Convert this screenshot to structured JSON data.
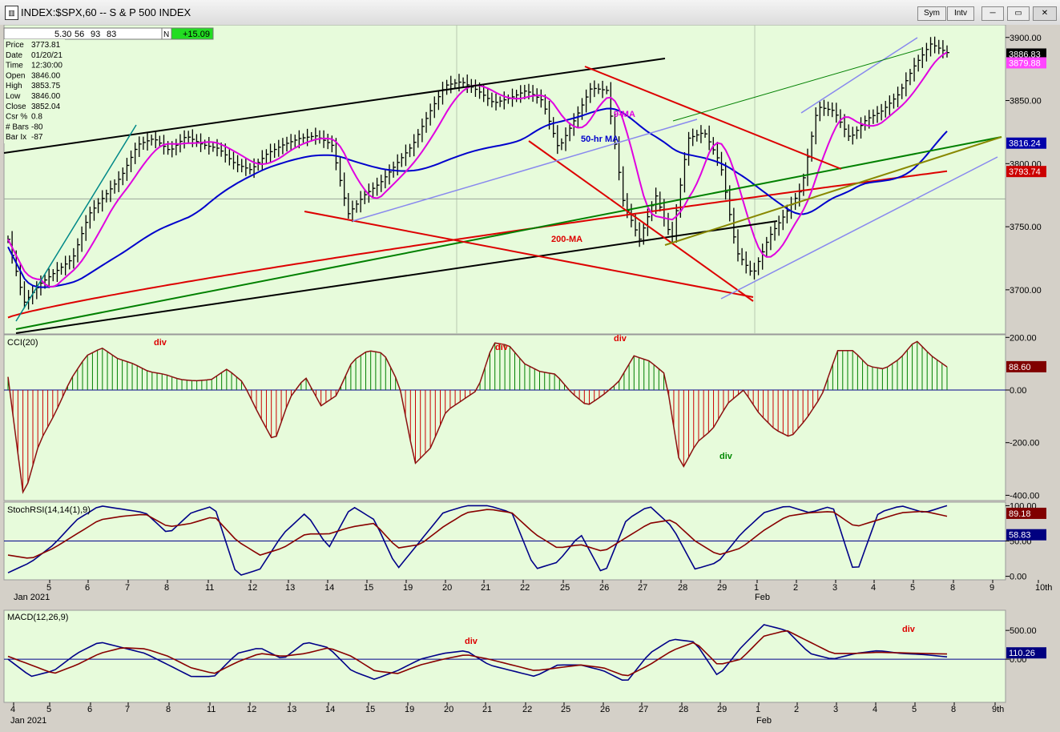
{
  "window": {
    "title": "INDEX:$SPX,60 -- S & P 500 INDEX",
    "sym_label": "Sym",
    "intv_label": "Intv",
    "minimize_glyph": "─",
    "restore_glyph": "▭",
    "close_glyph": "✕"
  },
  "toolbar": {
    "values": [
      "5.30",
      "56",
      "93",
      "83"
    ],
    "n_label": "N",
    "change": "+15.09"
  },
  "info_box": [
    {
      "label": "Price",
      "value": "3773.81"
    },
    {
      "label": "Date",
      "value": "01/20/21"
    },
    {
      "label": "Time",
      "value": "12:30:00"
    },
    {
      "label": "Open",
      "value": "3846.00"
    },
    {
      "label": "High",
      "value": "3853.75"
    },
    {
      "label": "Low",
      "value": "3846.00"
    },
    {
      "label": "Close",
      "value": "3852.04"
    },
    {
      "label": "Csr %",
      "value": "0.8"
    },
    {
      "label": "# Bars",
      "value": "-80"
    },
    {
      "label": "Bar Ix",
      "value": "-87"
    }
  ],
  "chart_data": [
    {
      "type": "ohlc",
      "panel": "price",
      "title": "",
      "ylim": [
        3665,
        3910
      ],
      "y_ticks": [
        "3900.00",
        "3850.00",
        "3800.00",
        "3750.00",
        "3700.00"
      ],
      "y_tick_values": [
        3900,
        3850,
        3800,
        3750,
        3700
      ],
      "close_path": [
        3740,
        3690,
        3705,
        3715,
        3725,
        3760,
        3775,
        3790,
        3815,
        3820,
        3810,
        3822,
        3815,
        3812,
        3800,
        3795,
        3808,
        3815,
        3820,
        3822,
        3815,
        3760,
        3775,
        3785,
        3800,
        3815,
        3840,
        3862,
        3865,
        3858,
        3848,
        3852,
        3858,
        3850,
        3812,
        3835,
        3860,
        3858,
        3770,
        3740,
        3775,
        3740,
        3820,
        3825,
        3800,
        3730,
        3712,
        3742,
        3760,
        3780,
        3845,
        3842,
        3820,
        3835,
        3842,
        3855,
        3878,
        3895,
        3888
      ],
      "highlight_labels": [
        {
          "value": "3886.83",
          "bg": "#000000",
          "fg": "#ffffff",
          "at": 3886.83
        },
        {
          "value": "3879.88",
          "bg": "#ff44ff",
          "fg": "#ffffff",
          "at": 3879.88
        },
        {
          "value": "3816.24",
          "bg": "#0000aa",
          "fg": "#ffffff",
          "at": 3816.24
        },
        {
          "value": "3793.74",
          "bg": "#cc0000",
          "fg": "#ffffff",
          "at": 3793.74
        }
      ],
      "annotations": [
        {
          "text": "9-MA",
          "color": "#e000e0"
        },
        {
          "text": "50-hr MA",
          "color": "#0000cc"
        },
        {
          "text": "200-MA",
          "color": "#dd0000"
        }
      ],
      "series": [
        {
          "name": "9-MA",
          "color": "#e000e0"
        },
        {
          "name": "50-hr MA",
          "color": "#0000cc"
        },
        {
          "name": "200-MA",
          "color": "#dd0000"
        }
      ]
    },
    {
      "type": "bar",
      "panel": "cci",
      "title": "CCI(20)",
      "ylim": [
        -420,
        210
      ],
      "y_ticks": [
        "200.00",
        "0.00",
        "-200.00",
        "-400.00"
      ],
      "y_tick_values": [
        200,
        0,
        -200,
        -400
      ],
      "values": [
        50,
        -410,
        -200,
        -90,
        40,
        130,
        160,
        120,
        100,
        70,
        60,
        40,
        35,
        40,
        80,
        30,
        -90,
        -200,
        -30,
        50,
        -60,
        -20,
        110,
        150,
        140,
        20,
        -280,
        -220,
        -80,
        -40,
        0,
        180,
        170,
        100,
        70,
        60,
        -10,
        -60,
        -20,
        30,
        130,
        110,
        60,
        -310,
        -200,
        -150,
        -50,
        0,
        -90,
        -150,
        -180,
        -110,
        -20,
        150,
        150,
        90,
        80,
        120,
        190,
        130,
        88
      ],
      "current_label": {
        "value": "88.60",
        "bg": "#800000",
        "fg": "#ffffff"
      },
      "annotations": [
        {
          "text": "div",
          "color": "#dd0000"
        },
        {
          "text": "div",
          "color": "#dd0000"
        },
        {
          "text": "div",
          "color": "#dd0000"
        },
        {
          "text": "div",
          "color": "#008800"
        }
      ]
    },
    {
      "type": "line",
      "panel": "stochrsi",
      "title": "StochRSI(14,14(1),9)",
      "ylim": [
        -5,
        105
      ],
      "y_ticks": [
        "100.00",
        "50.00",
        "0.00"
      ],
      "y_tick_values": [
        100,
        50,
        0
      ],
      "series": [
        {
          "name": "",
          "color": "#000088",
          "values": [
            5,
            20,
            45,
            80,
            100,
            95,
            90,
            60,
            90,
            100,
            0,
            10,
            60,
            90,
            40,
            100,
            80,
            10,
            50,
            90,
            100,
            100,
            90,
            10,
            20,
            60,
            0,
            80,
            100,
            70,
            10,
            20,
            60,
            90,
            100,
            90,
            100,
            0,
            90,
            100,
            90,
            100
          ]
        },
        {
          "name": "",
          "color": "#880000",
          "values": [
            30,
            25,
            40,
            60,
            80,
            85,
            88,
            70,
            75,
            85,
            50,
            30,
            40,
            60,
            60,
            70,
            75,
            40,
            45,
            70,
            90,
            95,
            90,
            60,
            40,
            45,
            35,
            55,
            75,
            80,
            50,
            30,
            40,
            65,
            85,
            90,
            92,
            70,
            80,
            90,
            92,
            85
          ]
        }
      ],
      "current_labels": [
        {
          "value": "89.18",
          "bg": "#800000",
          "fg": "#ffffff",
          "at": 89.18
        },
        {
          "value": "58.83",
          "bg": "#000080",
          "fg": "#ffffff",
          "at": 58.83
        }
      ],
      "x_ticks": [
        "5",
        "6",
        "7",
        "8",
        "11",
        "12",
        "13",
        "14",
        "15",
        "19",
        "20",
        "21",
        "22",
        "25",
        "26",
        "27",
        "28",
        "29",
        "1",
        "2",
        "3",
        "4",
        "5",
        "8",
        "9",
        "10th"
      ],
      "x_month_labels": [
        "Jan 2021",
        "Feb"
      ]
    },
    {
      "type": "line",
      "panel": "macd",
      "title": "MACD(12,26,9)",
      "ylim": [
        -750,
        850
      ],
      "y_ticks": [
        "500.00",
        "0.00"
      ],
      "y_tick_values": [
        500,
        0
      ],
      "series": [
        {
          "name": "",
          "color": "#000088",
          "values": [
            0,
            -300,
            -200,
            100,
            300,
            200,
            100,
            -100,
            -300,
            -300,
            100,
            200,
            0,
            300,
            200,
            -200,
            -350,
            -200,
            0,
            100,
            150,
            -100,
            -200,
            -300,
            -100,
            -100,
            -200,
            -400,
            100,
            350,
            300,
            -300,
            200,
            600,
            500,
            100,
            0,
            100,
            150,
            100,
            80,
            40
          ]
        },
        {
          "name": "",
          "color": "#880000",
          "values": [
            50,
            -100,
            -250,
            -100,
            100,
            200,
            180,
            50,
            -150,
            -250,
            -50,
            100,
            50,
            100,
            200,
            50,
            -200,
            -250,
            -100,
            0,
            80,
            0,
            -100,
            -200,
            -150,
            -100,
            -150,
            -300,
            -100,
            150,
            300,
            -100,
            0,
            400,
            500,
            300,
            100,
            100,
            120,
            110,
            100,
            90
          ]
        }
      ],
      "current_label": {
        "value": "110.26",
        "bg": "#000080",
        "fg": "#ffffff"
      },
      "annotations": [
        {
          "text": "div",
          "color": "#dd0000"
        },
        {
          "text": "div",
          "color": "#dd0000"
        }
      ],
      "x_ticks": [
        "4",
        "5",
        "6",
        "7",
        "8",
        "11",
        "12",
        "13",
        "14",
        "15",
        "19",
        "20",
        "21",
        "22",
        "25",
        "26",
        "27",
        "28",
        "29",
        "1",
        "2",
        "3",
        "4",
        "5",
        "8",
        "9th"
      ],
      "x_month_labels": [
        "Jan 2021",
        "Feb"
      ]
    }
  ]
}
